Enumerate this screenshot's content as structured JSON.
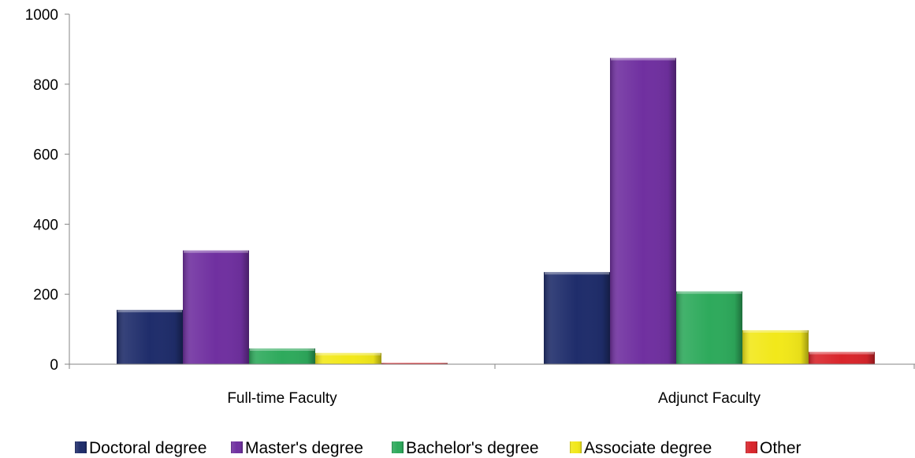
{
  "chart_data": {
    "type": "bar",
    "title": "",
    "xlabel": "",
    "ylabel": "",
    "categories": [
      "Full-time Faculty",
      "Adjunct Faculty"
    ],
    "ylim": [
      0,
      1000
    ],
    "yticks": [
      0,
      200,
      400,
      600,
      800,
      1000
    ],
    "grid": false,
    "legend_position": "bottom",
    "series": [
      {
        "name": "Doctoral degree",
        "values": [
          155,
          263
        ],
        "color": "#1f2d6b"
      },
      {
        "name": "Master's degree",
        "values": [
          325,
          875
        ],
        "color": "#7030a0"
      },
      {
        "name": "Bachelor's degree",
        "values": [
          45,
          208
        ],
        "color": "#2eaa5c"
      },
      {
        "name": "Associate degree",
        "values": [
          32,
          97
        ],
        "color": "#f2e81a"
      },
      {
        "name": "Other",
        "values": [
          2,
          35
        ],
        "color": "#d9252b"
      }
    ]
  }
}
